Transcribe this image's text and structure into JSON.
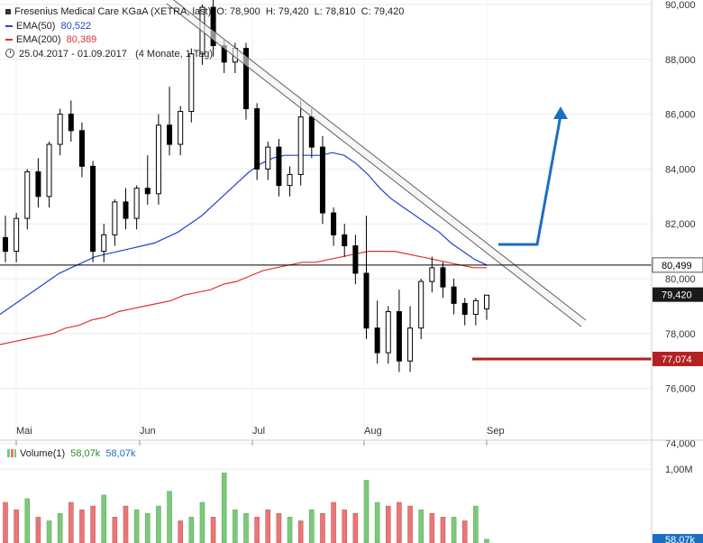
{
  "header": {
    "instrument": "Fresenius Medical Care KGaA (XETRA, last)",
    "open": "O: 78,900",
    "high": "H: 79,420",
    "low": "L: 78,810",
    "close": "C: 79,420",
    "ema50_label": "EMA(50)",
    "ema50_value": "80,522",
    "ema200_label": "EMA(200)",
    "ema200_value": "80,389",
    "range": "25.04.2017 - 01.09.2017",
    "period": "(4 Monate, 1 Tag)"
  },
  "volume_legend": {
    "label": "Volume(1)",
    "value1": "58,07k",
    "value2": "58,07k"
  },
  "colors": {
    "up": "#7cc97c",
    "down": "#e87777",
    "candle": "#000000",
    "ema50": "#2244cc",
    "ema200": "#dd3333",
    "arrow": "#1a6fc4",
    "support": "#b22222",
    "price_label_dark": "#1a1a1a",
    "vol_label": "#1a6fc4"
  },
  "chart_data": {
    "type": "candlestick",
    "x_tick_labels": [
      "Mai",
      "Jun",
      "Jul",
      "Aug",
      "Sep"
    ],
    "y_tick_labels": [
      "90,000",
      "88,000",
      "86,000",
      "84,000",
      "82,000",
      "80,000",
      "78,000",
      "76,000",
      "74,000"
    ],
    "ylim": [
      74,
      90
    ],
    "volume_tick_labels": [
      "1,00M"
    ],
    "markers": {
      "horizontal_line": "80,499",
      "last_price": "79,420",
      "support": "77,074",
      "volume_last": "58,07k"
    },
    "horizontal_line_value": 80.499,
    "support_value": 77.074,
    "last_price_value": 79.42,
    "series": [
      {
        "name": "EMA(50)",
        "values": [
          78.7,
          79.0,
          79.3,
          79.6,
          79.9,
          80.2,
          80.4,
          80.6,
          80.8,
          80.9,
          81.0,
          81.1,
          81.2,
          81.3,
          81.5,
          81.7,
          82.0,
          82.3,
          82.7,
          83.1,
          83.5,
          83.9,
          84.2,
          84.4,
          84.5,
          84.5,
          84.5,
          84.5,
          84.6,
          84.5,
          84.2,
          83.8,
          83.3,
          82.9,
          82.6,
          82.3,
          82.0,
          81.7,
          81.3,
          81.0,
          80.7,
          80.5
        ]
      },
      {
        "name": "EMA(200)",
        "values": [
          77.6,
          77.7,
          77.8,
          77.9,
          78.0,
          78.2,
          78.3,
          78.5,
          78.6,
          78.8,
          78.9,
          79.0,
          79.1,
          79.2,
          79.4,
          79.5,
          79.6,
          79.8,
          79.9,
          80.1,
          80.3,
          80.4,
          80.5,
          80.6,
          80.6,
          80.7,
          80.8,
          80.9,
          81.0,
          81.0,
          81.0,
          80.9,
          80.8,
          80.7,
          80.6,
          80.5,
          80.4,
          80.4
        ]
      }
    ],
    "candles": [
      [
        81.5,
        81.0,
        82.3
      ],
      [
        81.0,
        82.2,
        82.4
      ],
      [
        82.2,
        83.9,
        84.0
      ],
      [
        83.9,
        83.0,
        84.4
      ],
      [
        83.0,
        84.9,
        85.0
      ],
      [
        84.9,
        86.0,
        86.2
      ],
      [
        86.0,
        85.4,
        86.5
      ],
      [
        85.4,
        84.1,
        85.7
      ],
      [
        84.1,
        81.0,
        84.3
      ],
      [
        81.0,
        81.6,
        82.0
      ],
      [
        81.6,
        82.8,
        82.9
      ],
      [
        82.8,
        82.2,
        83.3
      ],
      [
        82.2,
        83.3,
        83.4
      ],
      [
        83.3,
        83.1,
        84.5
      ],
      [
        83.1,
        85.6,
        86.0
      ],
      [
        85.6,
        84.9,
        87.0
      ],
      [
        84.9,
        86.1,
        86.3
      ],
      [
        86.1,
        88.2,
        88.4
      ],
      [
        88.2,
        89.9,
        90.0
      ],
      [
        89.9,
        88.5,
        90.2
      ],
      [
        88.5,
        87.9,
        88.7
      ],
      [
        87.9,
        88.4,
        88.6
      ],
      [
        88.4,
        86.2,
        88.6
      ],
      [
        86.2,
        84.0,
        86.4
      ],
      [
        84.0,
        84.8,
        85.0
      ],
      [
        84.8,
        83.4,
        85.1
      ],
      [
        83.4,
        83.8,
        84.1
      ],
      [
        83.8,
        85.9,
        86.5
      ],
      [
        85.9,
        84.8,
        86.2
      ],
      [
        84.8,
        82.4,
        85.2
      ],
      [
        82.4,
        81.6,
        82.6
      ],
      [
        81.6,
        81.2,
        82.0
      ],
      [
        81.2,
        80.2,
        81.6
      ],
      [
        80.2,
        78.2,
        82.3
      ],
      [
        78.2,
        77.3,
        79.2
      ],
      [
        77.3,
        78.8,
        79.0
      ],
      [
        78.8,
        77.0,
        79.6
      ],
      [
        77.0,
        78.2,
        79.0
      ],
      [
        78.2,
        79.9,
        80.0
      ],
      [
        79.9,
        80.4,
        80.8
      ],
      [
        80.4,
        79.7,
        80.6
      ],
      [
        79.7,
        79.1,
        80.0
      ],
      [
        79.1,
        78.7,
        79.3
      ],
      [
        78.7,
        79.2,
        79.3
      ],
      [
        78.9,
        79.4,
        79.4
      ]
    ],
    "volumes": [
      [
        0.55,
        "d"
      ],
      [
        0.45,
        "d"
      ],
      [
        0.6,
        "g"
      ],
      [
        0.35,
        "d"
      ],
      [
        0.3,
        "g"
      ],
      [
        0.4,
        "g"
      ],
      [
        0.55,
        "d"
      ],
      [
        0.45,
        "d"
      ],
      [
        0.5,
        "d"
      ],
      [
        0.65,
        "g"
      ],
      [
        0.35,
        "d"
      ],
      [
        0.5,
        "d"
      ],
      [
        0.45,
        "g"
      ],
      [
        0.4,
        "g"
      ],
      [
        0.5,
        "g"
      ],
      [
        0.7,
        "g"
      ],
      [
        0.3,
        "d"
      ],
      [
        0.35,
        "g"
      ],
      [
        0.55,
        "g"
      ],
      [
        0.35,
        "d"
      ],
      [
        0.95,
        "g"
      ],
      [
        0.45,
        "g"
      ],
      [
        0.4,
        "g"
      ],
      [
        0.35,
        "d"
      ],
      [
        0.45,
        "d"
      ],
      [
        0.4,
        "d"
      ],
      [
        0.35,
        "g"
      ],
      [
        0.3,
        "d"
      ],
      [
        0.45,
        "g"
      ],
      [
        0.4,
        "d"
      ],
      [
        0.55,
        "d"
      ],
      [
        0.45,
        "d"
      ],
      [
        0.4,
        "d"
      ],
      [
        0.85,
        "g"
      ],
      [
        0.55,
        "g"
      ],
      [
        0.5,
        "d"
      ],
      [
        0.55,
        "d"
      ],
      [
        0.5,
        "d"
      ],
      [
        0.45,
        "g"
      ],
      [
        0.4,
        "d"
      ],
      [
        0.35,
        "d"
      ],
      [
        0.35,
        "g"
      ],
      [
        0.3,
        "d"
      ],
      [
        0.5,
        "g"
      ],
      [
        0.05,
        "g"
      ]
    ]
  }
}
